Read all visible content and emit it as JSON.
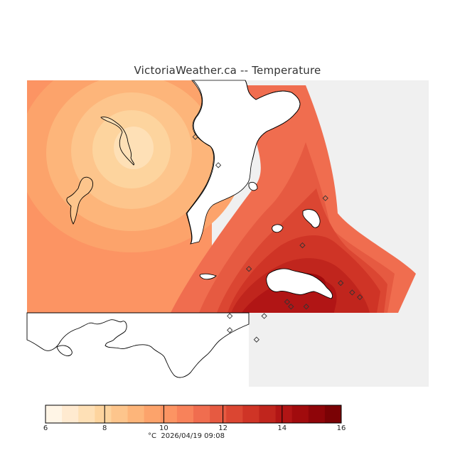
{
  "title": "VictoriaWeather.ca -- Temperature",
  "colorbar": {
    "min": 6,
    "max": 16,
    "labels": [
      "6",
      "8",
      "10",
      "12",
      "14",
      "16"
    ],
    "colors": [
      "#fff5e6",
      "#ffead0",
      "#fee0b6",
      "#fdd49e",
      "#fdc58c",
      "#fdb57a",
      "#fca36b",
      "#fc9463",
      "#f8825a",
      "#f06d4f",
      "#e65a41",
      "#db4632",
      "#cf3426",
      "#c0251d",
      "#b11515",
      "#a10b0d",
      "#8f0509",
      "#7a0205"
    ]
  },
  "units": "°C",
  "timestamp": "2026/04/19 09:08",
  "colors": {
    "no_data": "#f0f0f0",
    "water": "#ffffff",
    "coast": "#000000"
  },
  "stations": [
    {
      "lon": -123.56,
      "lat": 48.78
    },
    {
      "lon": -123.5,
      "lat": 48.72
    },
    {
      "lon": -123.22,
      "lat": 48.65
    },
    {
      "lon": -123.28,
      "lat": 48.55
    },
    {
      "lon": -123.42,
      "lat": 48.5
    },
    {
      "lon": -123.38,
      "lat": 48.4
    },
    {
      "lon": -123.47,
      "lat": 48.4
    },
    {
      "lon": -123.47,
      "lat": 48.37
    },
    {
      "lon": -123.4,
      "lat": 48.35
    },
    {
      "lon": -123.32,
      "lat": 48.43
    },
    {
      "lon": -123.31,
      "lat": 48.42
    },
    {
      "lon": -123.27,
      "lat": 48.42
    },
    {
      "lon": -123.18,
      "lat": 48.47
    },
    {
      "lon": -123.15,
      "lat": 48.45
    },
    {
      "lon": -123.13,
      "lat": 48.44
    }
  ]
}
